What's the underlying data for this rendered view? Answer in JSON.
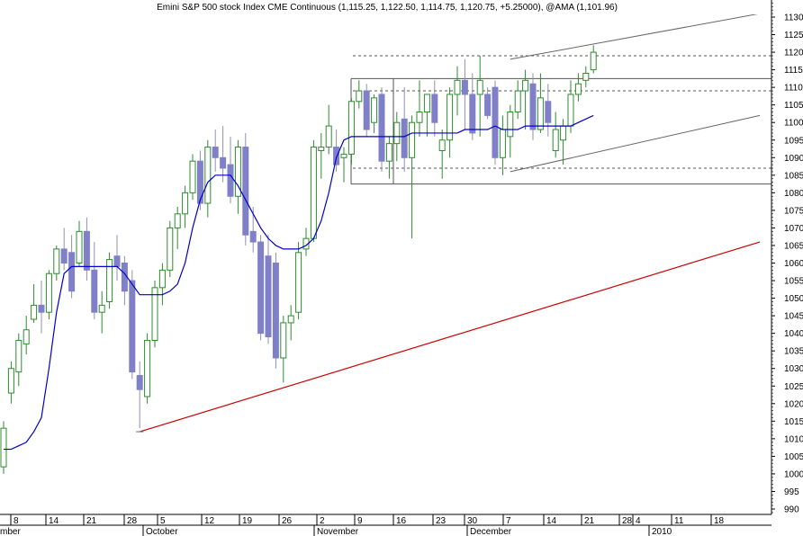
{
  "chart_data": {
    "type": "candlestick",
    "title": "Emini S&P 500 stock Index CME Continuous (1,115.25, 1,122.50, 1,114.75, 1,120.75, +5.25000), @AMA (1,101.96)",
    "ylim": [
      988,
      1135
    ],
    "y_ticks": [
      990,
      995,
      1000,
      1005,
      1010,
      1015,
      1020,
      1025,
      1030,
      1035,
      1040,
      1045,
      1050,
      1055,
      1060,
      1065,
      1070,
      1075,
      1080,
      1085,
      1090,
      1095,
      1100,
      1105,
      1110,
      1115,
      1120,
      1125,
      1130
    ],
    "x_day_labels": [
      "8",
      "14",
      "21",
      "28",
      "5",
      "12",
      "19",
      "26",
      "2",
      "9",
      "16",
      "23",
      "30",
      "7",
      "14",
      "21",
      "28",
      "4",
      "11",
      "18"
    ],
    "x_month_labels": [
      "mber",
      "October",
      "November",
      "December",
      "2010"
    ],
    "up_color": "#2e8b2e",
    "down_color": "#8080c8",
    "ama_color": "#0000cc",
    "trend_color": "#cc0000",
    "candles": [
      {
        "o": 1002,
        "h": 1015,
        "l": 1000,
        "c": 1013
      },
      {
        "o": 1023,
        "h": 1032,
        "l": 1020,
        "c": 1030
      },
      {
        "o": 1029,
        "h": 1040,
        "l": 1025,
        "c": 1038
      },
      {
        "o": 1037,
        "h": 1045,
        "l": 1034,
        "c": 1041
      },
      {
        "o": 1044,
        "h": 1054,
        "l": 1043,
        "c": 1048
      },
      {
        "o": 1048,
        "h": 1055,
        "l": 1040,
        "c": 1046
      },
      {
        "o": 1046,
        "h": 1058,
        "l": 1044,
        "c": 1057
      },
      {
        "o": 1057,
        "h": 1065,
        "l": 1055,
        "c": 1064
      },
      {
        "o": 1064,
        "h": 1070,
        "l": 1058,
        "c": 1060
      },
      {
        "o": 1063,
        "h": 1068,
        "l": 1050,
        "c": 1052
      },
      {
        "o": 1060,
        "h": 1072,
        "l": 1059,
        "c": 1069
      },
      {
        "o": 1069,
        "h": 1073,
        "l": 1055,
        "c": 1058
      },
      {
        "o": 1058,
        "h": 1066,
        "l": 1044,
        "c": 1046
      },
      {
        "o": 1046,
        "h": 1052,
        "l": 1040,
        "c": 1048
      },
      {
        "o": 1049,
        "h": 1063,
        "l": 1047,
        "c": 1061
      },
      {
        "o": 1062,
        "h": 1068,
        "l": 1055,
        "c": 1059
      },
      {
        "o": 1060,
        "h": 1062,
        "l": 1048,
        "c": 1052
      },
      {
        "o": 1055,
        "h": 1058,
        "l": 1027,
        "c": 1029
      },
      {
        "o": 1028,
        "h": 1032,
        "l": 1013,
        "c": 1024
      },
      {
        "o": 1022,
        "h": 1040,
        "l": 1020,
        "c": 1038
      },
      {
        "o": 1038,
        "h": 1055,
        "l": 1036,
        "c": 1053
      },
      {
        "o": 1053,
        "h": 1060,
        "l": 1048,
        "c": 1058
      },
      {
        "o": 1058,
        "h": 1072,
        "l": 1056,
        "c": 1070
      },
      {
        "o": 1070,
        "h": 1076,
        "l": 1064,
        "c": 1074
      },
      {
        "o": 1074,
        "h": 1082,
        "l": 1070,
        "c": 1080
      },
      {
        "o": 1080,
        "h": 1091,
        "l": 1078,
        "c": 1089
      },
      {
        "o": 1089,
        "h": 1092,
        "l": 1075,
        "c": 1077
      },
      {
        "o": 1077,
        "h": 1095,
        "l": 1073,
        "c": 1093
      },
      {
        "o": 1093,
        "h": 1098,
        "l": 1086,
        "c": 1090
      },
      {
        "o": 1090,
        "h": 1099,
        "l": 1083,
        "c": 1087
      },
      {
        "o": 1088,
        "h": 1096,
        "l": 1077,
        "c": 1079
      },
      {
        "o": 1079,
        "h": 1095,
        "l": 1074,
        "c": 1093
      },
      {
        "o": 1093,
        "h": 1097,
        "l": 1065,
        "c": 1068
      },
      {
        "o": 1069,
        "h": 1076,
        "l": 1063,
        "c": 1066
      },
      {
        "o": 1066,
        "h": 1068,
        "l": 1038,
        "c": 1040
      },
      {
        "o": 1062,
        "h": 1068,
        "l": 1037,
        "c": 1039
      },
      {
        "o": 1060,
        "h": 1063,
        "l": 1030,
        "c": 1033
      },
      {
        "o": 1033,
        "h": 1045,
        "l": 1026,
        "c": 1043
      },
      {
        "o": 1043,
        "h": 1048,
        "l": 1038,
        "c": 1045
      },
      {
        "o": 1046,
        "h": 1066,
        "l": 1044,
        "c": 1063
      },
      {
        "o": 1064,
        "h": 1070,
        "l": 1062,
        "c": 1067
      },
      {
        "o": 1067,
        "h": 1095,
        "l": 1066,
        "c": 1093
      },
      {
        "o": 1092,
        "h": 1097,
        "l": 1084,
        "c": 1093
      },
      {
        "o": 1093,
        "h": 1105,
        "l": 1091,
        "c": 1099
      },
      {
        "o": 1093,
        "h": 1098,
        "l": 1086,
        "c": 1088
      },
      {
        "o": 1090,
        "h": 1093,
        "l": 1083,
        "c": 1091
      },
      {
        "o": 1091,
        "h": 1107,
        "l": 1088,
        "c": 1106
      },
      {
        "o": 1106,
        "h": 1112,
        "l": 1104,
        "c": 1109
      },
      {
        "o": 1109,
        "h": 1111,
        "l": 1096,
        "c": 1098
      },
      {
        "o": 1100,
        "h": 1108,
        "l": 1097,
        "c": 1107
      },
      {
        "o": 1108,
        "h": 1110,
        "l": 1086,
        "c": 1089
      },
      {
        "o": 1089,
        "h": 1096,
        "l": 1084,
        "c": 1094
      },
      {
        "o": 1094,
        "h": 1103,
        "l": 1089,
        "c": 1100
      },
      {
        "o": 1101,
        "h": 1110,
        "l": 1086,
        "c": 1090
      },
      {
        "o": 1090,
        "h": 1102,
        "l": 1067,
        "c": 1100
      },
      {
        "o": 1100,
        "h": 1112,
        "l": 1096,
        "c": 1103
      },
      {
        "o": 1103,
        "h": 1108,
        "l": 1096,
        "c": 1108
      },
      {
        "o": 1108,
        "h": 1112,
        "l": 1096,
        "c": 1100
      },
      {
        "o": 1092,
        "h": 1098,
        "l": 1084,
        "c": 1095
      },
      {
        "o": 1095,
        "h": 1110,
        "l": 1090,
        "c": 1108
      },
      {
        "o": 1108,
        "h": 1116,
        "l": 1102,
        "c": 1112
      },
      {
        "o": 1112,
        "h": 1118,
        "l": 1098,
        "c": 1108
      },
      {
        "o": 1108,
        "h": 1114,
        "l": 1095,
        "c": 1097
      },
      {
        "o": 1108,
        "h": 1119,
        "l": 1096,
        "c": 1112
      },
      {
        "o": 1108,
        "h": 1110,
        "l": 1101,
        "c": 1102
      },
      {
        "o": 1110,
        "h": 1112,
        "l": 1088,
        "c": 1090
      },
      {
        "o": 1090,
        "h": 1102,
        "l": 1085,
        "c": 1098
      },
      {
        "o": 1096,
        "h": 1105,
        "l": 1090,
        "c": 1103
      },
      {
        "o": 1103,
        "h": 1112,
        "l": 1101,
        "c": 1109
      },
      {
        "o": 1109,
        "h": 1115,
        "l": 1098,
        "c": 1112
      },
      {
        "o": 1111,
        "h": 1114,
        "l": 1095,
        "c": 1098
      },
      {
        "o": 1098,
        "h": 1114,
        "l": 1097,
        "c": 1107
      },
      {
        "o": 1106,
        "h": 1111,
        "l": 1096,
        "c": 1100
      },
      {
        "o": 1092,
        "h": 1103,
        "l": 1090,
        "c": 1098
      },
      {
        "o": 1095,
        "h": 1101,
        "l": 1088,
        "c": 1099
      },
      {
        "o": 1099,
        "h": 1112,
        "l": 1097,
        "c": 1108
      },
      {
        "o": 1108,
        "h": 1114,
        "l": 1106,
        "c": 1111
      },
      {
        "o": 1112,
        "h": 1116,
        "l": 1110,
        "c": 1114
      },
      {
        "o": 1115,
        "h": 1122,
        "l": 1114,
        "c": 1120
      }
    ],
    "ama": [
      1007,
      1007,
      1008,
      1009,
      1012,
      1016,
      1030,
      1046,
      1057,
      1059,
      1059,
      1059,
      1059,
      1059,
      1059,
      1059,
      1057,
      1054,
      1051,
      1051,
      1051,
      1051,
      1052,
      1054,
      1060,
      1070,
      1078,
      1083,
      1085,
      1085,
      1085,
      1082,
      1078,
      1074,
      1070,
      1067,
      1065,
      1064,
      1064,
      1064,
      1065,
      1067,
      1072,
      1080,
      1090,
      1095,
      1096,
      1096,
      1096,
      1096,
      1096,
      1096,
      1096,
      1096,
      1097,
      1097,
      1097,
      1097,
      1097,
      1097,
      1097,
      1098,
      1098,
      1098,
      1098,
      1099,
      1098,
      1098,
      1098,
      1099,
      1099,
      1099,
      1099,
      1099,
      1099,
      1099,
      1100,
      1101,
      1102
    ],
    "levels": {
      "solid": [
        1112.5,
        1082.5
      ],
      "dashed": [
        1119,
        1109,
        1087
      ]
    },
    "channel_upper": [
      [
        67,
        1118
      ],
      [
        100,
        1131
      ]
    ],
    "channel_lower": [
      [
        67,
        1086
      ],
      [
        100,
        1102
      ]
    ],
    "outer_upper": [
      [
        79,
        1121
      ],
      [
        100,
        1131
      ]
    ],
    "trendline": [
      [
        18,
        1012
      ],
      [
        100,
        1066
      ]
    ],
    "low_marker_value": 1012
  }
}
